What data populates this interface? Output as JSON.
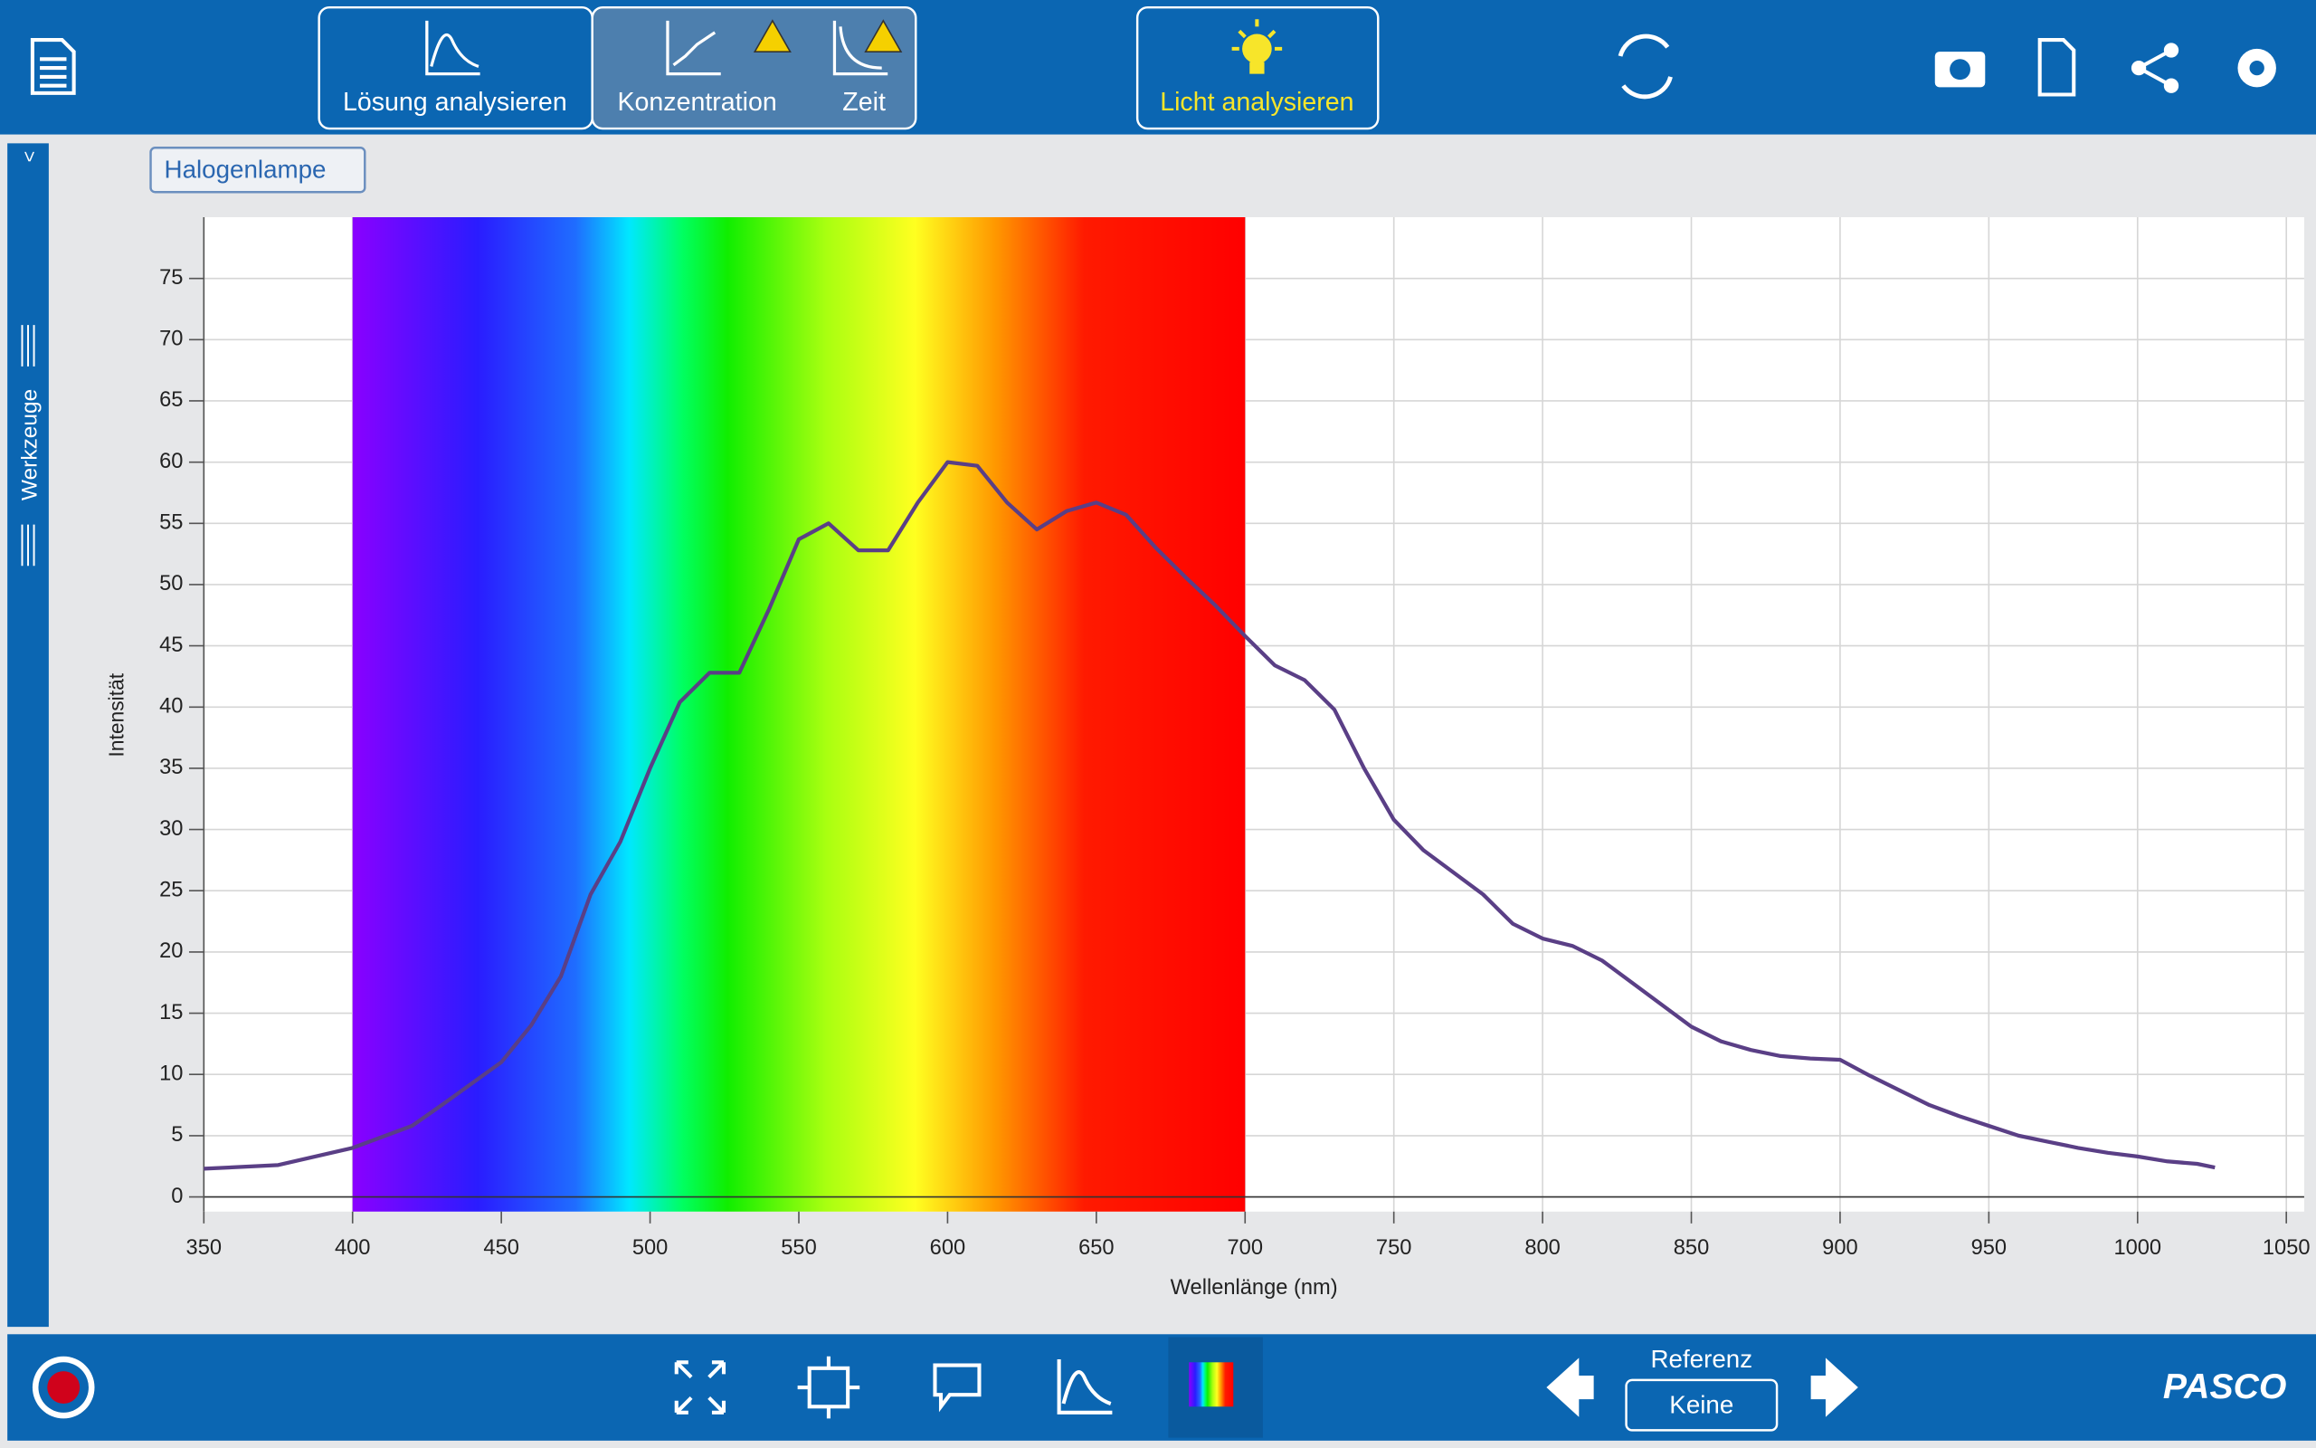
{
  "toolbar": {
    "buttons": [
      "Lösung analysieren",
      "Konzentration",
      "Zeit",
      "Licht analysieren"
    ]
  },
  "sidebar": {
    "toggle": ">",
    "label": "Werkzeuge"
  },
  "source_label": "Halogenlampe",
  "footer": {
    "reference_label": "Referenz",
    "reference_value": "Keine",
    "brand": "PASCO"
  },
  "chart_data": {
    "type": "line",
    "x_label": "Wellenlänge (nm)",
    "y_label": "Intensität",
    "color": "#5a3f86",
    "grid": true,
    "spectrum_range": [
      400,
      700
    ],
    "xlim": [
      350,
      1056
    ],
    "ylim": [
      -1.2,
      80
    ],
    "xticks": [
      350,
      400,
      450,
      500,
      550,
      600,
      650,
      700,
      750,
      800,
      850,
      900,
      950,
      1000,
      1050
    ],
    "yticks": [
      0,
      5,
      10,
      15,
      20,
      25,
      30,
      35,
      40,
      45,
      50,
      55,
      60,
      65,
      70,
      75
    ],
    "x": [
      350,
      375,
      400,
      420,
      430,
      450,
      460,
      470,
      480,
      490,
      500,
      510,
      520,
      530,
      540,
      550,
      560,
      570,
      580,
      590,
      600,
      610,
      620,
      630,
      640,
      650,
      660,
      670,
      680,
      690,
      700,
      710,
      720,
      730,
      740,
      750,
      760,
      770,
      780,
      790,
      800,
      810,
      820,
      830,
      840,
      850,
      860,
      870,
      880,
      890,
      900,
      910,
      920,
      930,
      940,
      950,
      960,
      970,
      980,
      990,
      1000,
      1010,
      1020,
      1026
    ],
    "values": [
      2.3,
      2.6,
      4,
      5.8,
      7.5,
      11,
      14,
      18,
      24.7,
      29,
      35,
      40.4,
      42.8,
      42.8,
      48,
      53.7,
      55,
      52.8,
      52.8,
      56.7,
      60,
      59.7,
      56.7,
      54.5,
      56,
      56.7,
      55.7,
      53,
      50.6,
      48.3,
      45.8,
      43.4,
      42.2,
      39.8,
      35,
      30.8,
      28.3,
      26.5,
      24.7,
      22.3,
      21.1,
      20.5,
      19.3,
      17.5,
      15.7,
      13.9,
      12.7,
      12,
      11.5,
      11.3,
      11.2,
      9.9,
      8.7,
      7.5,
      6.6,
      5.8,
      5,
      4.5,
      4,
      3.6,
      3.3,
      2.9,
      2.7,
      2.4
    ]
  }
}
